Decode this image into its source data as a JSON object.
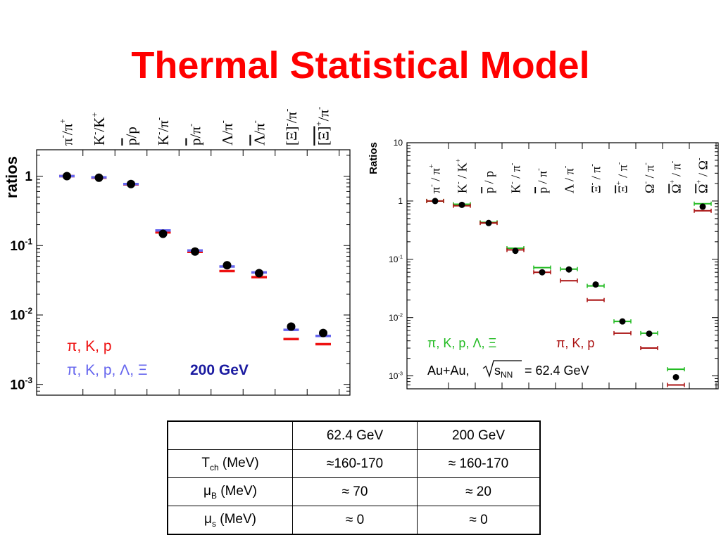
{
  "title": "Thermal Statistical Model",
  "chart_data": [
    {
      "type": "scatter",
      "title": "",
      "ylabel": "ratios",
      "yscale": "log",
      "ylim": [
        0.0007,
        2.4
      ],
      "yticks": [
        {
          "value": 1,
          "mantissa": "1",
          "exp": ""
        },
        {
          "value": 0.1,
          "mantissa": "10",
          "exp": "-1"
        },
        {
          "value": 0.01,
          "mantissa": "10",
          "exp": "-2"
        },
        {
          "value": 0.001,
          "mantissa": "10",
          "exp": "-3"
        }
      ],
      "categories": [
        {
          "num": "π",
          "num_sup": "-",
          "den": "π",
          "den_sup": "+",
          "den_bar": false
        },
        {
          "num": "K",
          "num_sup": "-",
          "den": "K",
          "den_sup": "+",
          "den_bar": false
        },
        {
          "num": "p",
          "num_sup": "",
          "num_bar": true,
          "den": "p",
          "den_sup": ""
        },
        {
          "num": "K",
          "num_sup": "-",
          "den": "π",
          "den_sup": "-"
        },
        {
          "num": "p",
          "num_sup": "",
          "num_bar": true,
          "den": "π",
          "den_sup": "-"
        },
        {
          "num": "Λ",
          "num_sup": "",
          "den": "π",
          "den_sup": "-"
        },
        {
          "num": "Λ",
          "num_sup": "",
          "num_bar": true,
          "den": "π",
          "den_sup": "-"
        },
        {
          "num": "Ξ",
          "num_sup": "-",
          "num_bracket": true,
          "den": "π",
          "den_sup": "-"
        },
        {
          "num": "Ξ",
          "num_sup": "+",
          "num_bracket": true,
          "num_bar": true,
          "den": "π",
          "den_sup": "-"
        }
      ],
      "series": [
        {
          "kind": "data",
          "values": [
            1.0,
            0.95,
            0.77,
            0.148,
            0.082,
            0.052,
            0.04,
            0.0068,
            0.0055
          ]
        },
        {
          "kind": "model",
          "legend_key": "fit_piKp",
          "values": [
            1.0,
            0.95,
            0.76,
            0.155,
            0.081,
            0.043,
            0.035,
            0.0045,
            0.0038
          ]
        },
        {
          "kind": "model",
          "legend_key": "fit_all",
          "values": [
            1.0,
            0.96,
            0.77,
            0.165,
            0.085,
            0.05,
            0.041,
            0.0061,
            0.005
          ]
        }
      ],
      "legend": {
        "fit_piKp": "π, K, p",
        "fit_all": "π, K, p, Λ, Ξ",
        "energy": "200 GeV"
      },
      "colors": {
        "data": "#000000",
        "fit_piKp": "#ee1111",
        "fit_all": "#6666ee",
        "energy": "#1a1aa0"
      }
    },
    {
      "type": "scatter",
      "title": "",
      "ylabel": "Ratios",
      "yscale": "log",
      "ylim": [
        0.0006,
        10
      ],
      "yticks": [
        {
          "value": 10,
          "mantissa": "10",
          "exp": ""
        },
        {
          "value": 1,
          "mantissa": "1",
          "exp": ""
        },
        {
          "value": 0.1,
          "mantissa": "10",
          "exp": "-1"
        },
        {
          "value": 0.01,
          "mantissa": "10",
          "exp": "-2"
        },
        {
          "value": 0.001,
          "mantissa": "10",
          "exp": "-3"
        }
      ],
      "categories": [
        {
          "num": "π",
          "num_sup": "-",
          "den": "π",
          "den_sup": "+"
        },
        {
          "num": "K",
          "num_sup": "-",
          "den": "K",
          "den_sup": "+"
        },
        {
          "num": "p",
          "num_sup": "",
          "num_bar": true,
          "den": "p",
          "den_sup": ""
        },
        {
          "num": "K",
          "num_sup": "-",
          "den": "π",
          "den_sup": "-"
        },
        {
          "num": "p",
          "num_sup": "",
          "num_bar": true,
          "den": "π",
          "den_sup": "-"
        },
        {
          "num": "Λ",
          "num_sup": "",
          "den": "π",
          "den_sup": "-"
        },
        {
          "num": "Ξ",
          "num_sup": "-",
          "den": "π",
          "den_sup": "-"
        },
        {
          "num": "Ξ",
          "num_sup": "+",
          "num_bar": true,
          "den": "π",
          "den_sup": "-"
        },
        {
          "num": "Ω",
          "num_sup": "-",
          "den": "π",
          "den_sup": "-"
        },
        {
          "num": "Ω",
          "num_sup": "+",
          "num_bar": true,
          "den": "π",
          "den_sup": "-"
        },
        {
          "num": "Ω",
          "num_sup": "+",
          "num_bar": true,
          "den": "Ω",
          "den_sup": "-"
        }
      ],
      "series": [
        {
          "kind": "data",
          "values": [
            1.0,
            0.86,
            0.42,
            0.14,
            0.06,
            0.067,
            0.037,
            0.0086,
            0.0053,
            0.00095,
            0.8
          ]
        },
        {
          "kind": "model",
          "legend_key": "fit_all",
          "values": [
            1.0,
            0.88,
            0.43,
            0.155,
            0.072,
            0.068,
            0.035,
            0.0086,
            0.0054,
            0.0013,
            0.9
          ]
        },
        {
          "kind": "model",
          "legend_key": "fit_piKp",
          "values": [
            1.0,
            0.83,
            0.42,
            0.145,
            0.06,
            0.043,
            0.02,
            0.0054,
            0.003,
            0.0007,
            0.68
          ]
        }
      ],
      "legend": {
        "fit_all": "π, K, p, Λ, Ξ",
        "fit_piKp": "π, K, p",
        "system": "Au+Au,",
        "sqrt_s": "s",
        "sqrt_s_sub": "NN",
        "energy": "= 62.4 GeV"
      },
      "colors": {
        "data": "#000000",
        "fit_all": "#22bb22",
        "fit_piKp": "#aa1111"
      }
    }
  ],
  "table": {
    "header": [
      "",
      "62.4 GeV",
      "200 GeV"
    ],
    "rows": [
      {
        "sym": "T",
        "sub": "ch",
        "unit": " (MeV)",
        "cells": [
          "≈160-170",
          "≈ 160-170"
        ]
      },
      {
        "sym": "μ",
        "sub": "B",
        "unit": " (MeV)",
        "cells": [
          "≈ 70",
          "≈ 20"
        ]
      },
      {
        "sym": "μ",
        "sub": "s",
        "unit": " (MeV)",
        "cells": [
          "≈ 0",
          "≈ 0"
        ]
      }
    ]
  }
}
